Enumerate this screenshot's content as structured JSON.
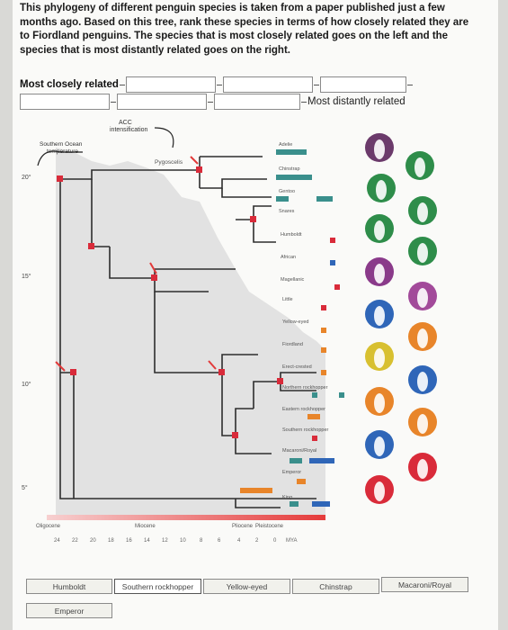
{
  "question": {
    "intro": "This phylogeny of different penguin species is taken from a paper published just a few months ago. Based on this tree, rank these species in terms of how closely related they are to ",
    "target": "Fiordland penguins",
    "outro": ". The species that is most closely related goes on the left and the species that is most distantly related goes on the right."
  },
  "ranking": {
    "left_label": "Most closely related",
    "right_label": "Most distantly related",
    "slots": [
      "",
      "",
      "",
      "",
      "",
      ""
    ]
  },
  "figure": {
    "top_annotations": [
      "ACC",
      "intensification"
    ],
    "side_label": [
      "Southern Ocean",
      "temperature"
    ],
    "clade_label": "Pygoscelis",
    "y_ticks": [
      "20°",
      "15°",
      "10°",
      "5°"
    ],
    "species": [
      "Adelie",
      "Chinstrap",
      "Gentoo",
      "Snares",
      "Humboldt",
      "African",
      "Magellanic",
      "Little",
      "Yellow-eyed",
      "Fiordland",
      "Erect-crested",
      "Northern rockhopper",
      "Eastern rockhopper",
      "Southern rockhopper",
      "Macaroni/Royal",
      "Emperor",
      "King"
    ],
    "epochs": [
      "Oligocene",
      "Miocene",
      "Pliocene",
      "Pleistocene"
    ],
    "axis_numbers": [
      "24",
      "22",
      "20",
      "18",
      "16",
      "14",
      "12",
      "10",
      "8",
      "6",
      "4",
      "2",
      "0"
    ],
    "axis_unit": "MYA",
    "colors": {
      "teal_dots": "#3a8f8c",
      "red_dots": "#d92b3a",
      "orange_dots": "#e8852a",
      "blue_dots": "#2f66b8",
      "grey_area": "#dcdcdc",
      "gradient_left": "#f0a0a0",
      "gradient_right": "#e83a3a"
    }
  },
  "choices": [
    "Humboldt",
    "Southern rockhopper",
    "Yellow-eyed",
    "Chinstrap",
    "Macaroni/Royal",
    "Emperor"
  ]
}
